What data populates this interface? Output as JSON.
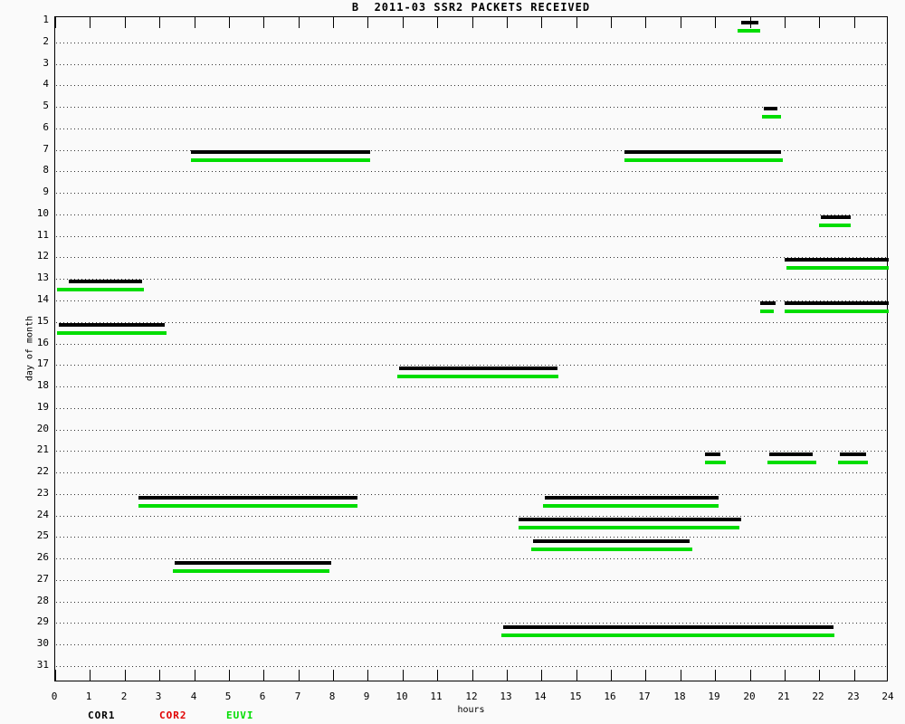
{
  "colors": {
    "foreground": "#000000",
    "background": "#fafafa",
    "grid_dots": "#303030",
    "cor1": "#000000",
    "cor2": "#e10000",
    "euvi": "#00dd00"
  },
  "legend": {
    "items": [
      {
        "label": "COR1",
        "color": "#000000",
        "x": 97
      },
      {
        "label": "COR2",
        "color": "#e10000",
        "x": 176
      },
      {
        "label": "EUVI",
        "color": "#00dd00",
        "x": 250
      }
    ]
  },
  "chart_data": {
    "type": "gantt",
    "title": "B  2011-03 SSR2 PACKETS RECEIVED",
    "xlabel": "hours",
    "ylabel": "day of month",
    "xlim": [
      0,
      24
    ],
    "ylim": [
      1,
      31
    ],
    "grid": "dotted horizontal line per day, days 2-31",
    "legend_position": "below plot, bottom-left",
    "x_tick_labels": [
      "0",
      "1",
      "2",
      "3",
      "4",
      "5",
      "6",
      "7",
      "8",
      "9",
      "10",
      "11",
      "12",
      "13",
      "14",
      "15",
      "16",
      "17",
      "18",
      "19",
      "20",
      "21",
      "22",
      "23",
      "24"
    ],
    "y_tick_labels": [
      "1",
      "2",
      "3",
      "4",
      "5",
      "6",
      "7",
      "8",
      "9",
      "10",
      "11",
      "12",
      "13",
      "14",
      "15",
      "16",
      "17",
      "18",
      "19",
      "20",
      "21",
      "22",
      "23",
      "24",
      "25",
      "26",
      "27",
      "28",
      "29",
      "30",
      "31"
    ],
    "series": [
      {
        "name": "COR1",
        "color": "#000000",
        "row_offset_days": 0.15,
        "segments": [
          {
            "day": 1,
            "start": 19.75,
            "end": 20.25
          },
          {
            "day": 5,
            "start": 20.4,
            "end": 20.8
          },
          {
            "day": 7,
            "start": 3.9,
            "end": 9.05
          },
          {
            "day": 7,
            "start": 16.4,
            "end": 20.9
          },
          {
            "day": 10,
            "start": 22.05,
            "end": 22.9
          },
          {
            "day": 12,
            "start": 21.0,
            "end": 24.0
          },
          {
            "day": 13,
            "start": 0.4,
            "end": 2.5
          },
          {
            "day": 14,
            "start": 20.3,
            "end": 20.75
          },
          {
            "day": 14,
            "start": 21.0,
            "end": 24.0
          },
          {
            "day": 15,
            "start": 0.1,
            "end": 3.15
          },
          {
            "day": 17,
            "start": 9.9,
            "end": 14.45
          },
          {
            "day": 21,
            "start": 18.7,
            "end": 19.15
          },
          {
            "day": 21,
            "start": 20.55,
            "end": 21.8
          },
          {
            "day": 21,
            "start": 22.6,
            "end": 23.35
          },
          {
            "day": 23,
            "start": 2.4,
            "end": 8.7
          },
          {
            "day": 23,
            "start": 14.1,
            "end": 19.1
          },
          {
            "day": 24,
            "start": 13.35,
            "end": 19.75
          },
          {
            "day": 25,
            "start": 13.75,
            "end": 18.25
          },
          {
            "day": 26,
            "start": 3.45,
            "end": 7.95
          },
          {
            "day": 29,
            "start": 12.9,
            "end": 22.4
          }
        ]
      },
      {
        "name": "COR2",
        "color": "#e10000",
        "row_offset_days": 0.35,
        "segments": []
      },
      {
        "name": "EUVI",
        "color": "#00dd00",
        "row_offset_days": 0.55,
        "segments": [
          {
            "day": 1,
            "start": 19.65,
            "end": 20.3
          },
          {
            "day": 5,
            "start": 20.35,
            "end": 20.9
          },
          {
            "day": 7,
            "start": 3.9,
            "end": 9.05
          },
          {
            "day": 7,
            "start": 16.4,
            "end": 20.95
          },
          {
            "day": 10,
            "start": 22.0,
            "end": 22.9
          },
          {
            "day": 12,
            "start": 21.05,
            "end": 24.0
          },
          {
            "day": 13,
            "start": 0.05,
            "end": 2.55
          },
          {
            "day": 14,
            "start": 20.3,
            "end": 20.7
          },
          {
            "day": 14,
            "start": 21.0,
            "end": 24.0
          },
          {
            "day": 15,
            "start": 0.05,
            "end": 3.2
          },
          {
            "day": 17,
            "start": 9.85,
            "end": 14.5
          },
          {
            "day": 21,
            "start": 18.7,
            "end": 19.3
          },
          {
            "day": 21,
            "start": 20.5,
            "end": 21.9
          },
          {
            "day": 21,
            "start": 22.55,
            "end": 23.4
          },
          {
            "day": 23,
            "start": 2.4,
            "end": 8.7
          },
          {
            "day": 23,
            "start": 14.05,
            "end": 19.1
          },
          {
            "day": 24,
            "start": 13.35,
            "end": 19.7
          },
          {
            "day": 25,
            "start": 13.7,
            "end": 18.35
          },
          {
            "day": 26,
            "start": 3.4,
            "end": 7.9
          },
          {
            "day": 29,
            "start": 12.85,
            "end": 22.45
          }
        ]
      }
    ]
  }
}
